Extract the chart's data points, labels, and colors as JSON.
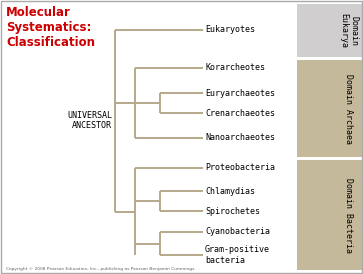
{
  "title": "Molecular\nSystematics:\nClassification",
  "title_color": "#cc0000",
  "background_color": "#ffffff",
  "border_color": "#aaaaaa",
  "tree_color": "#b5a88a",
  "tree_lw": 1.4,
  "universal_ancestor_label": "UNIVERSAL\nANCESTOR",
  "euk_bg": "#d0cece",
  "arc_bg": "#c4b99a",
  "bac_bg": "#c4b99a",
  "font_size_labels": 6.0,
  "font_size_title": 8.5,
  "font_size_domain": 6.0,
  "font_size_ancestor": 6.0,
  "copyright": "Copyright © 2008 Pearson Education, Inc., publishing as Pearson Benjamin Cummings."
}
